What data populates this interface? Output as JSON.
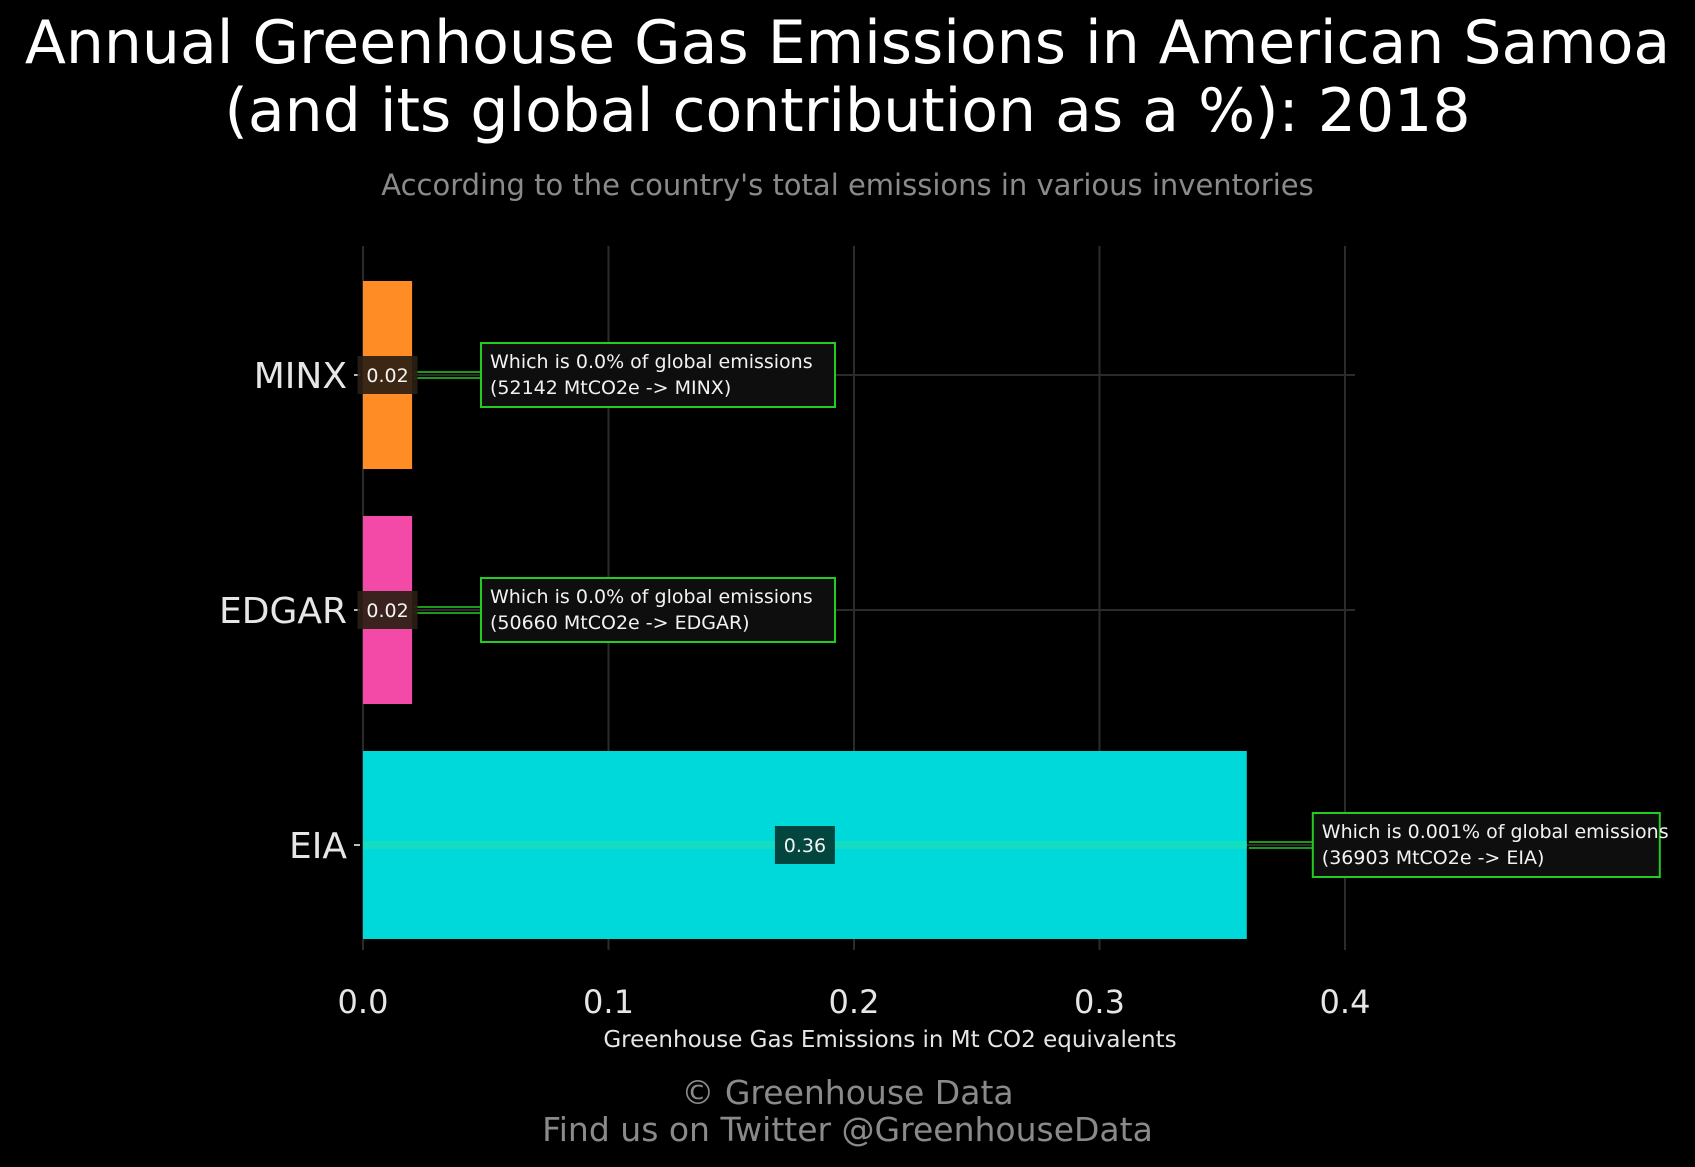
{
  "header": {
    "title_line1": "Annual Greenhouse Gas Emissions in American Samoa",
    "title_line2": "(and its global contribution as a %): 2018",
    "subtitle": "According to the country's total emissions in various inventories"
  },
  "footer": {
    "line1": "© Greenhouse Data",
    "line2": "Find us on Twitter @GreenhouseData"
  },
  "chart_data": {
    "type": "bar",
    "orientation": "horizontal",
    "categories": [
      "MINX",
      "EDGAR",
      "EIA"
    ],
    "values": [
      0.02,
      0.02,
      0.36
    ],
    "value_labels": [
      "0.02",
      "0.02",
      "0.36"
    ],
    "colors": [
      "#FF8C24",
      "#F24AA6",
      "#00D9D9"
    ],
    "annotations": [
      {
        "line1": "Which is 0.0% of global emissions",
        "line2": "(52142 MtCO2e -> MINX)"
      },
      {
        "line1": "Which is 0.0% of global emissions",
        "line2": "(50660 MtCO2e -> EDGAR)"
      },
      {
        "line1": "Which is 0.001% of global emissions",
        "line2": "(36903 MtCO2e -> EIA)"
      }
    ],
    "xlabel": "Greenhouse Gas Emissions in Mt CO2 equivalents",
    "ylabel": "",
    "xlim": [
      0,
      0.4
    ],
    "xticks": [
      "0.0",
      "0.1",
      "0.2",
      "0.3",
      "0.4"
    ],
    "grid": true,
    "annotation_border_color": "#22CC22",
    "background": "#000000"
  }
}
